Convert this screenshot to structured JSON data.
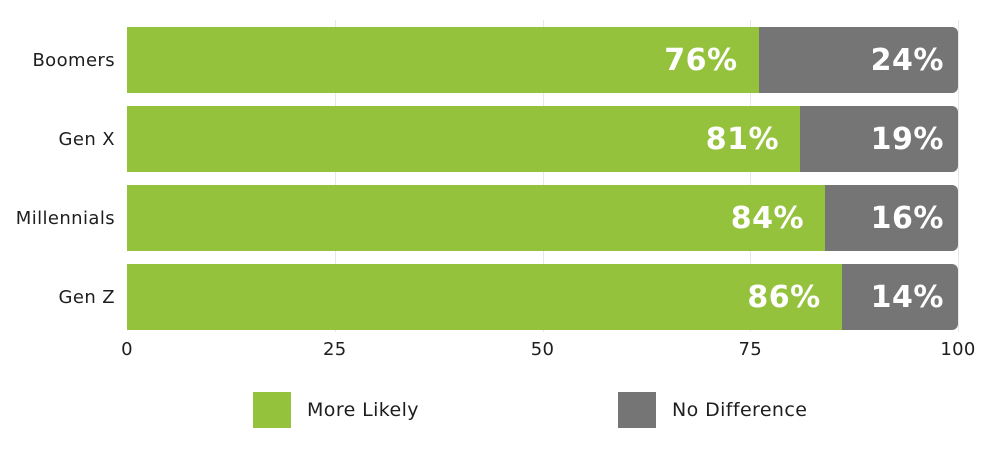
{
  "chart_data": {
    "type": "bar",
    "variant": "horizontal-stacked",
    "title": "",
    "xlabel": "",
    "ylabel": "",
    "xlim": [
      0,
      100
    ],
    "grid": "vertical-light",
    "legend_position": "bottom-center",
    "categories": [
      "Boomers",
      "Gen X",
      "Millennials",
      "Gen Z"
    ],
    "series": [
      {
        "name": "More Likely",
        "color": "#95C23D",
        "values": [
          76,
          81,
          84,
          86
        ]
      },
      {
        "name": "No Difference",
        "color": "#757575",
        "values": [
          24,
          19,
          16,
          14
        ]
      }
    ],
    "bar_labels": {
      "more_likely": [
        "76%",
        "81%",
        "84%",
        "86%"
      ],
      "no_difference": [
        "24%",
        "19%",
        "16%",
        "14%"
      ]
    },
    "x_ticks": [
      "0",
      "25",
      "50",
      "75",
      "100"
    ],
    "legend": [
      {
        "label": "More Likely",
        "color": "#95C23D"
      },
      {
        "label": "No Difference",
        "color": "#757575"
      }
    ],
    "text_color": "#1e1e1e",
    "value_label_color": "#ffffff",
    "gridline_color": "#e7e7e7"
  }
}
